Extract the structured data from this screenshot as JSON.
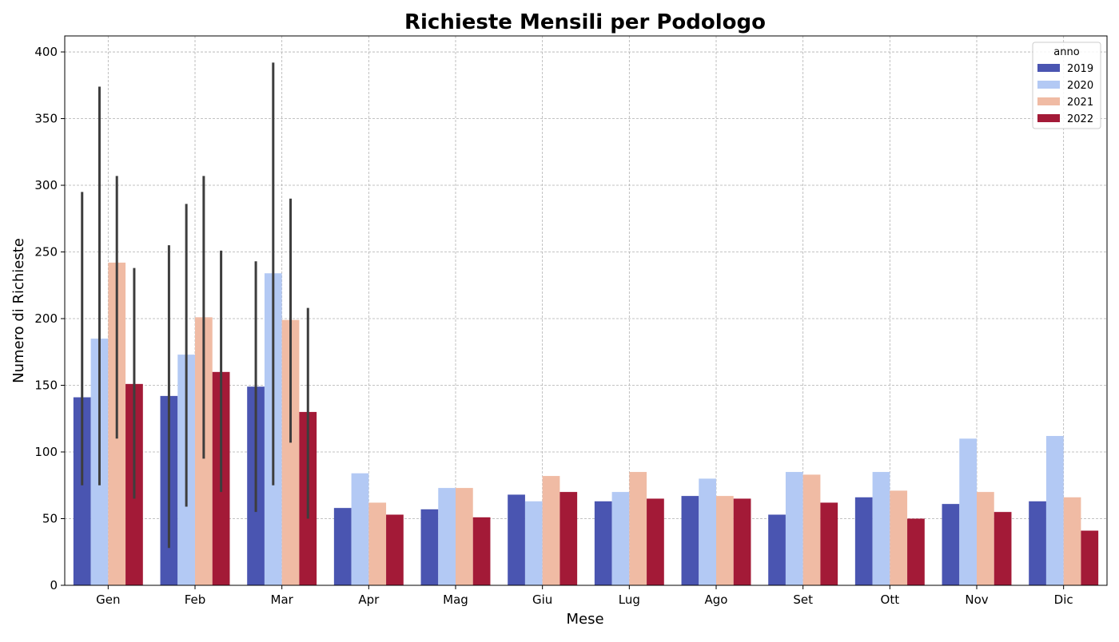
{
  "chart_data": {
    "type": "bar",
    "title": "Richieste Mensili per Podologo",
    "xlabel": "Mese",
    "ylabel": "Numero di Richieste",
    "categories": [
      "Gen",
      "Feb",
      "Mar",
      "Apr",
      "Mag",
      "Giu",
      "Lug",
      "Ago",
      "Set",
      "Ott",
      "Nov",
      "Dic"
    ],
    "ylim": [
      0,
      412
    ],
    "yticks": [
      0,
      50,
      100,
      150,
      200,
      250,
      300,
      350,
      400
    ],
    "grid": true,
    "legend": {
      "title": "anno",
      "placement": "top-right"
    },
    "series": [
      {
        "name": "2019",
        "color": "#4a55b1",
        "values": [
          141,
          142,
          149,
          58,
          57,
          68,
          63,
          67,
          53,
          66,
          61,
          63
        ],
        "error_low": [
          75,
          28,
          55,
          null,
          null,
          null,
          null,
          null,
          null,
          null,
          null,
          null
        ],
        "error_high": [
          295,
          255,
          243,
          null,
          null,
          null,
          null,
          null,
          null,
          null,
          null,
          null
        ]
      },
      {
        "name": "2020",
        "color": "#b3c9f4",
        "values": [
          185,
          173,
          234,
          84,
          73,
          63,
          70,
          80,
          85,
          85,
          110,
          112
        ],
        "error_low": [
          75,
          59,
          75,
          null,
          null,
          null,
          null,
          null,
          null,
          null,
          null,
          null
        ],
        "error_high": [
          374,
          286,
          392,
          null,
          null,
          null,
          null,
          null,
          null,
          null,
          null,
          null
        ]
      },
      {
        "name": "2021",
        "color": "#f0bba4",
        "values": [
          242,
          201,
          199,
          62,
          73,
          82,
          85,
          67,
          83,
          71,
          70,
          66
        ],
        "error_low": [
          110,
          95,
          107,
          null,
          null,
          null,
          null,
          null,
          null,
          null,
          null,
          null
        ],
        "error_high": [
          307,
          307,
          290,
          null,
          null,
          null,
          null,
          null,
          null,
          null,
          null,
          null
        ]
      },
      {
        "name": "2022",
        "color": "#a31a37",
        "values": [
          151,
          160,
          130,
          53,
          51,
          70,
          65,
          65,
          62,
          50,
          55,
          41
        ],
        "error_low": [
          65,
          70,
          50,
          null,
          null,
          null,
          null,
          null,
          null,
          null,
          null,
          null
        ],
        "error_high": [
          238,
          251,
          208,
          null,
          null,
          null,
          null,
          null,
          null,
          null,
          null,
          null
        ]
      }
    ]
  }
}
